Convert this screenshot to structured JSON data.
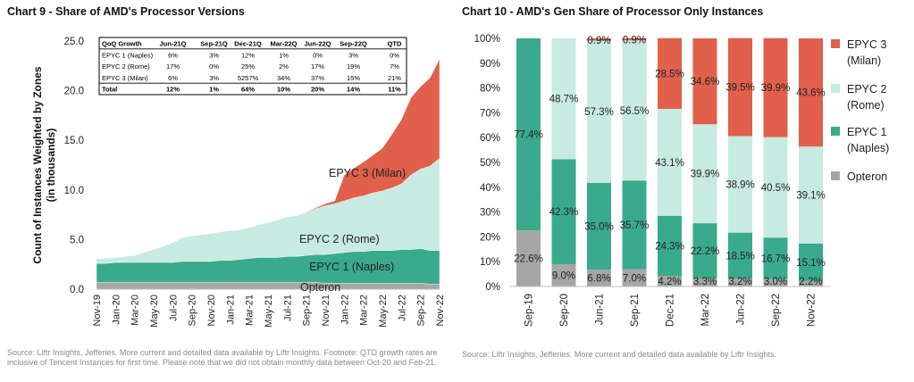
{
  "charts": {
    "left_title": "Chart 9 - Share of AMD's Processor Versions",
    "right_title": "Chart 10 - AMD's Gen Share of Processor Only Instances",
    "left_source": "Source: Liftr Insights, Jefferies. More current and detailed data available by Liftr Insights. Footnote: QTD growth rates are inclusive of Tencent Instances for first time. Please note that we did not obtain monthly data between Oct-20 and Feb-21.",
    "right_source": "Source: Liftr Insights, Jefferies. More current and detailed data available by Liftr Insights."
  },
  "growth_table": {
    "headers": [
      "QoQ Growth",
      "Jun-21Q",
      "Sep-21Q",
      "Dec-21Q",
      "Mar-22Q",
      "Jun-22Q",
      "Sep-22Q",
      "QTD"
    ],
    "rows": [
      [
        "EPYC 1 (Naples)",
        "6%",
        "3%",
        "12%",
        "1%",
        "0%",
        "3%",
        "0%"
      ],
      [
        "EPYC 2 (Rome)",
        "17%",
        "0%",
        "25%",
        "2%",
        "17%",
        "19%",
        "7%"
      ],
      [
        "EPYC 3 (Milan)",
        "6%",
        "3%",
        "5257%",
        "34%",
        "37%",
        "15%",
        "21%"
      ],
      [
        "Total",
        "12%",
        "1%",
        "64%",
        "10%",
        "20%",
        "14%",
        "11%"
      ]
    ]
  },
  "chart_data": [
    {
      "type": "area",
      "title": "Chart 9 - Share of AMD's Processor Versions",
      "ylabel": "Count of Instances Weighted by Zones (in thousands)",
      "xlabel": "",
      "ylim": [
        0,
        25
      ],
      "yticks": [
        "0.0",
        "5.0",
        "10.0",
        "15.0",
        "20.0",
        "25.0"
      ],
      "x_tick_labels": [
        "Nov-19",
        "Jan-20",
        "Mar-20",
        "May-20",
        "Jul-20",
        "Sep-20",
        "Nov-20",
        "Jan-21",
        "Mar-21",
        "May-21",
        "Jul-21",
        "Sep-21",
        "Nov-21",
        "Jan-22",
        "Mar-22",
        "May-22",
        "Jul-22",
        "Sep-22",
        "Nov-22"
      ],
      "stacked": true,
      "x": [
        "Nov-19",
        "Dec-19",
        "Jan-20",
        "Feb-20",
        "Mar-20",
        "Apr-20",
        "May-20",
        "Jun-20",
        "Jul-20",
        "Aug-20",
        "Sep-20",
        "Oct-20",
        "Nov-20",
        "Dec-20",
        "Jan-21",
        "Feb-21",
        "Mar-21",
        "Apr-21",
        "May-21",
        "Jun-21",
        "Jul-21",
        "Aug-21",
        "Sep-21",
        "Oct-21",
        "Nov-21",
        "Dec-21",
        "Jan-22",
        "Feb-22",
        "Mar-22",
        "Apr-22",
        "May-22",
        "Jun-22",
        "Jul-22",
        "Aug-22",
        "Sep-22",
        "Oct-22",
        "Nov-22"
      ],
      "series": [
        {
          "name": "Opteron",
          "color": "#a6a6a6",
          "values": [
            0.7,
            0.7,
            0.7,
            0.7,
            0.7,
            0.7,
            0.7,
            0.7,
            0.7,
            0.7,
            0.7,
            0.7,
            0.7,
            0.7,
            0.7,
            0.7,
            0.7,
            0.7,
            0.7,
            0.7,
            0.7,
            0.7,
            0.7,
            0.7,
            0.6,
            0.6,
            0.6,
            0.6,
            0.6,
            0.6,
            0.6,
            0.6,
            0.6,
            0.6,
            0.6,
            0.5,
            0.5
          ]
        },
        {
          "name": "EPYC 1 (Naples)",
          "color": "#3aaa8c",
          "values": [
            1.9,
            1.9,
            2.0,
            2.0,
            2.0,
            2.0,
            2.0,
            2.0,
            2.0,
            2.1,
            2.1,
            2.1,
            2.1,
            2.2,
            2.2,
            2.3,
            2.4,
            2.5,
            2.5,
            2.5,
            2.6,
            2.6,
            2.7,
            2.8,
            2.9,
            3.0,
            3.1,
            3.2,
            3.2,
            3.3,
            3.3,
            3.3,
            3.4,
            3.4,
            3.5,
            3.4,
            3.4
          ]
        },
        {
          "name": "EPYC 2 (Rome)",
          "color": "#c7eae1",
          "values": [
            0.5,
            0.5,
            0.5,
            0.6,
            0.7,
            1.0,
            1.3,
            1.6,
            2.0,
            2.4,
            2.6,
            2.7,
            2.8,
            2.9,
            3.0,
            3.0,
            3.1,
            3.3,
            3.5,
            3.8,
            4.0,
            4.1,
            4.3,
            4.6,
            4.9,
            5.0,
            5.2,
            5.4,
            5.6,
            5.8,
            6.0,
            6.3,
            6.6,
            7.5,
            8.0,
            8.5,
            9.3
          ]
        },
        {
          "name": "EPYC 3 (Milan)",
          "color": "#e0604b",
          "values": [
            0,
            0,
            0,
            0,
            0,
            0,
            0,
            0,
            0,
            0,
            0,
            0,
            0,
            0,
            0,
            0,
            0,
            0,
            0,
            0,
            0,
            0,
            0.05,
            0.1,
            0.2,
            0.3,
            2.6,
            3.0,
            3.4,
            3.8,
            4.3,
            5.4,
            6.5,
            7.8,
            8.3,
            8.9,
            10.0
          ]
        }
      ],
      "annotations": [
        "EPYC 3 (Milan)",
        "EPYC 2 (Rome)",
        "EPYC 1 (Naples)",
        "Opteron"
      ]
    },
    {
      "type": "bar",
      "stacked": true,
      "title": "Chart 10 - AMD's Gen Share of Processor Only Instances",
      "ylim": [
        0,
        100
      ],
      "yticks": [
        "0%",
        "10%",
        "20%",
        "30%",
        "40%",
        "50%",
        "60%",
        "70%",
        "80%",
        "90%",
        "100%"
      ],
      "categories": [
        "Sep-19",
        "Sep-20",
        "Jun-21",
        "Sep-21",
        "Dec-21",
        "Mar-22",
        "Jun-22",
        "Sep-22",
        "Nov-22"
      ],
      "legend_position": "right",
      "series": [
        {
          "name": "Opteron",
          "color": "#a6a6a6",
          "values": [
            22.6,
            9.0,
            6.8,
            7.0,
            4.2,
            3.3,
            3.2,
            3.0,
            2.2
          ],
          "labels": [
            "22.6%",
            "9.0%",
            "6.8%",
            "7.0%",
            "4.2%",
            "3.3%",
            "3.2%",
            "3.0%",
            "2.2%"
          ]
        },
        {
          "name": "EPYC 1 (Naples)",
          "color": "#3aaa8c",
          "values": [
            77.4,
            42.3,
            35.0,
            35.7,
            24.3,
            22.2,
            18.5,
            16.7,
            15.1
          ],
          "labels": [
            "77.4%",
            "42.3%",
            "35.0%",
            "35.7%",
            "24.3%",
            "22.2%",
            "18.5%",
            "16.7%",
            "15.1%"
          ]
        },
        {
          "name": "EPYC 2 (Rome)",
          "color": "#c7eae1",
          "values": [
            0,
            48.7,
            57.3,
            56.5,
            43.1,
            39.9,
            38.9,
            40.5,
            39.1
          ],
          "labels": [
            "",
            "48.7%",
            "57.3%",
            "56.5%",
            "43.1%",
            "39.9%",
            "38.9%",
            "40.5%",
            "39.1%"
          ]
        },
        {
          "name": "EPYC 3 (Milan)",
          "color": "#e0604b",
          "values": [
            0,
            0,
            0.9,
            0.9,
            28.5,
            34.6,
            39.5,
            39.9,
            43.6
          ],
          "labels": [
            "",
            "",
            "0.9%",
            "0.9%",
            "28.5%",
            "34.6%",
            "39.5%",
            "39.9%",
            "43.6%"
          ]
        }
      ],
      "legend": [
        {
          "line1": "EPYC 3",
          "line2": "(Milan)",
          "color": "#e0604b"
        },
        {
          "line1": "EPYC 2",
          "line2": "(Rome)",
          "color": "#c7eae1"
        },
        {
          "line1": "EPYC 1",
          "line2": "(Naples)",
          "color": "#3aaa8c"
        },
        {
          "line1": "Opteron",
          "line2": "",
          "color": "#a6a6a6"
        }
      ]
    }
  ]
}
